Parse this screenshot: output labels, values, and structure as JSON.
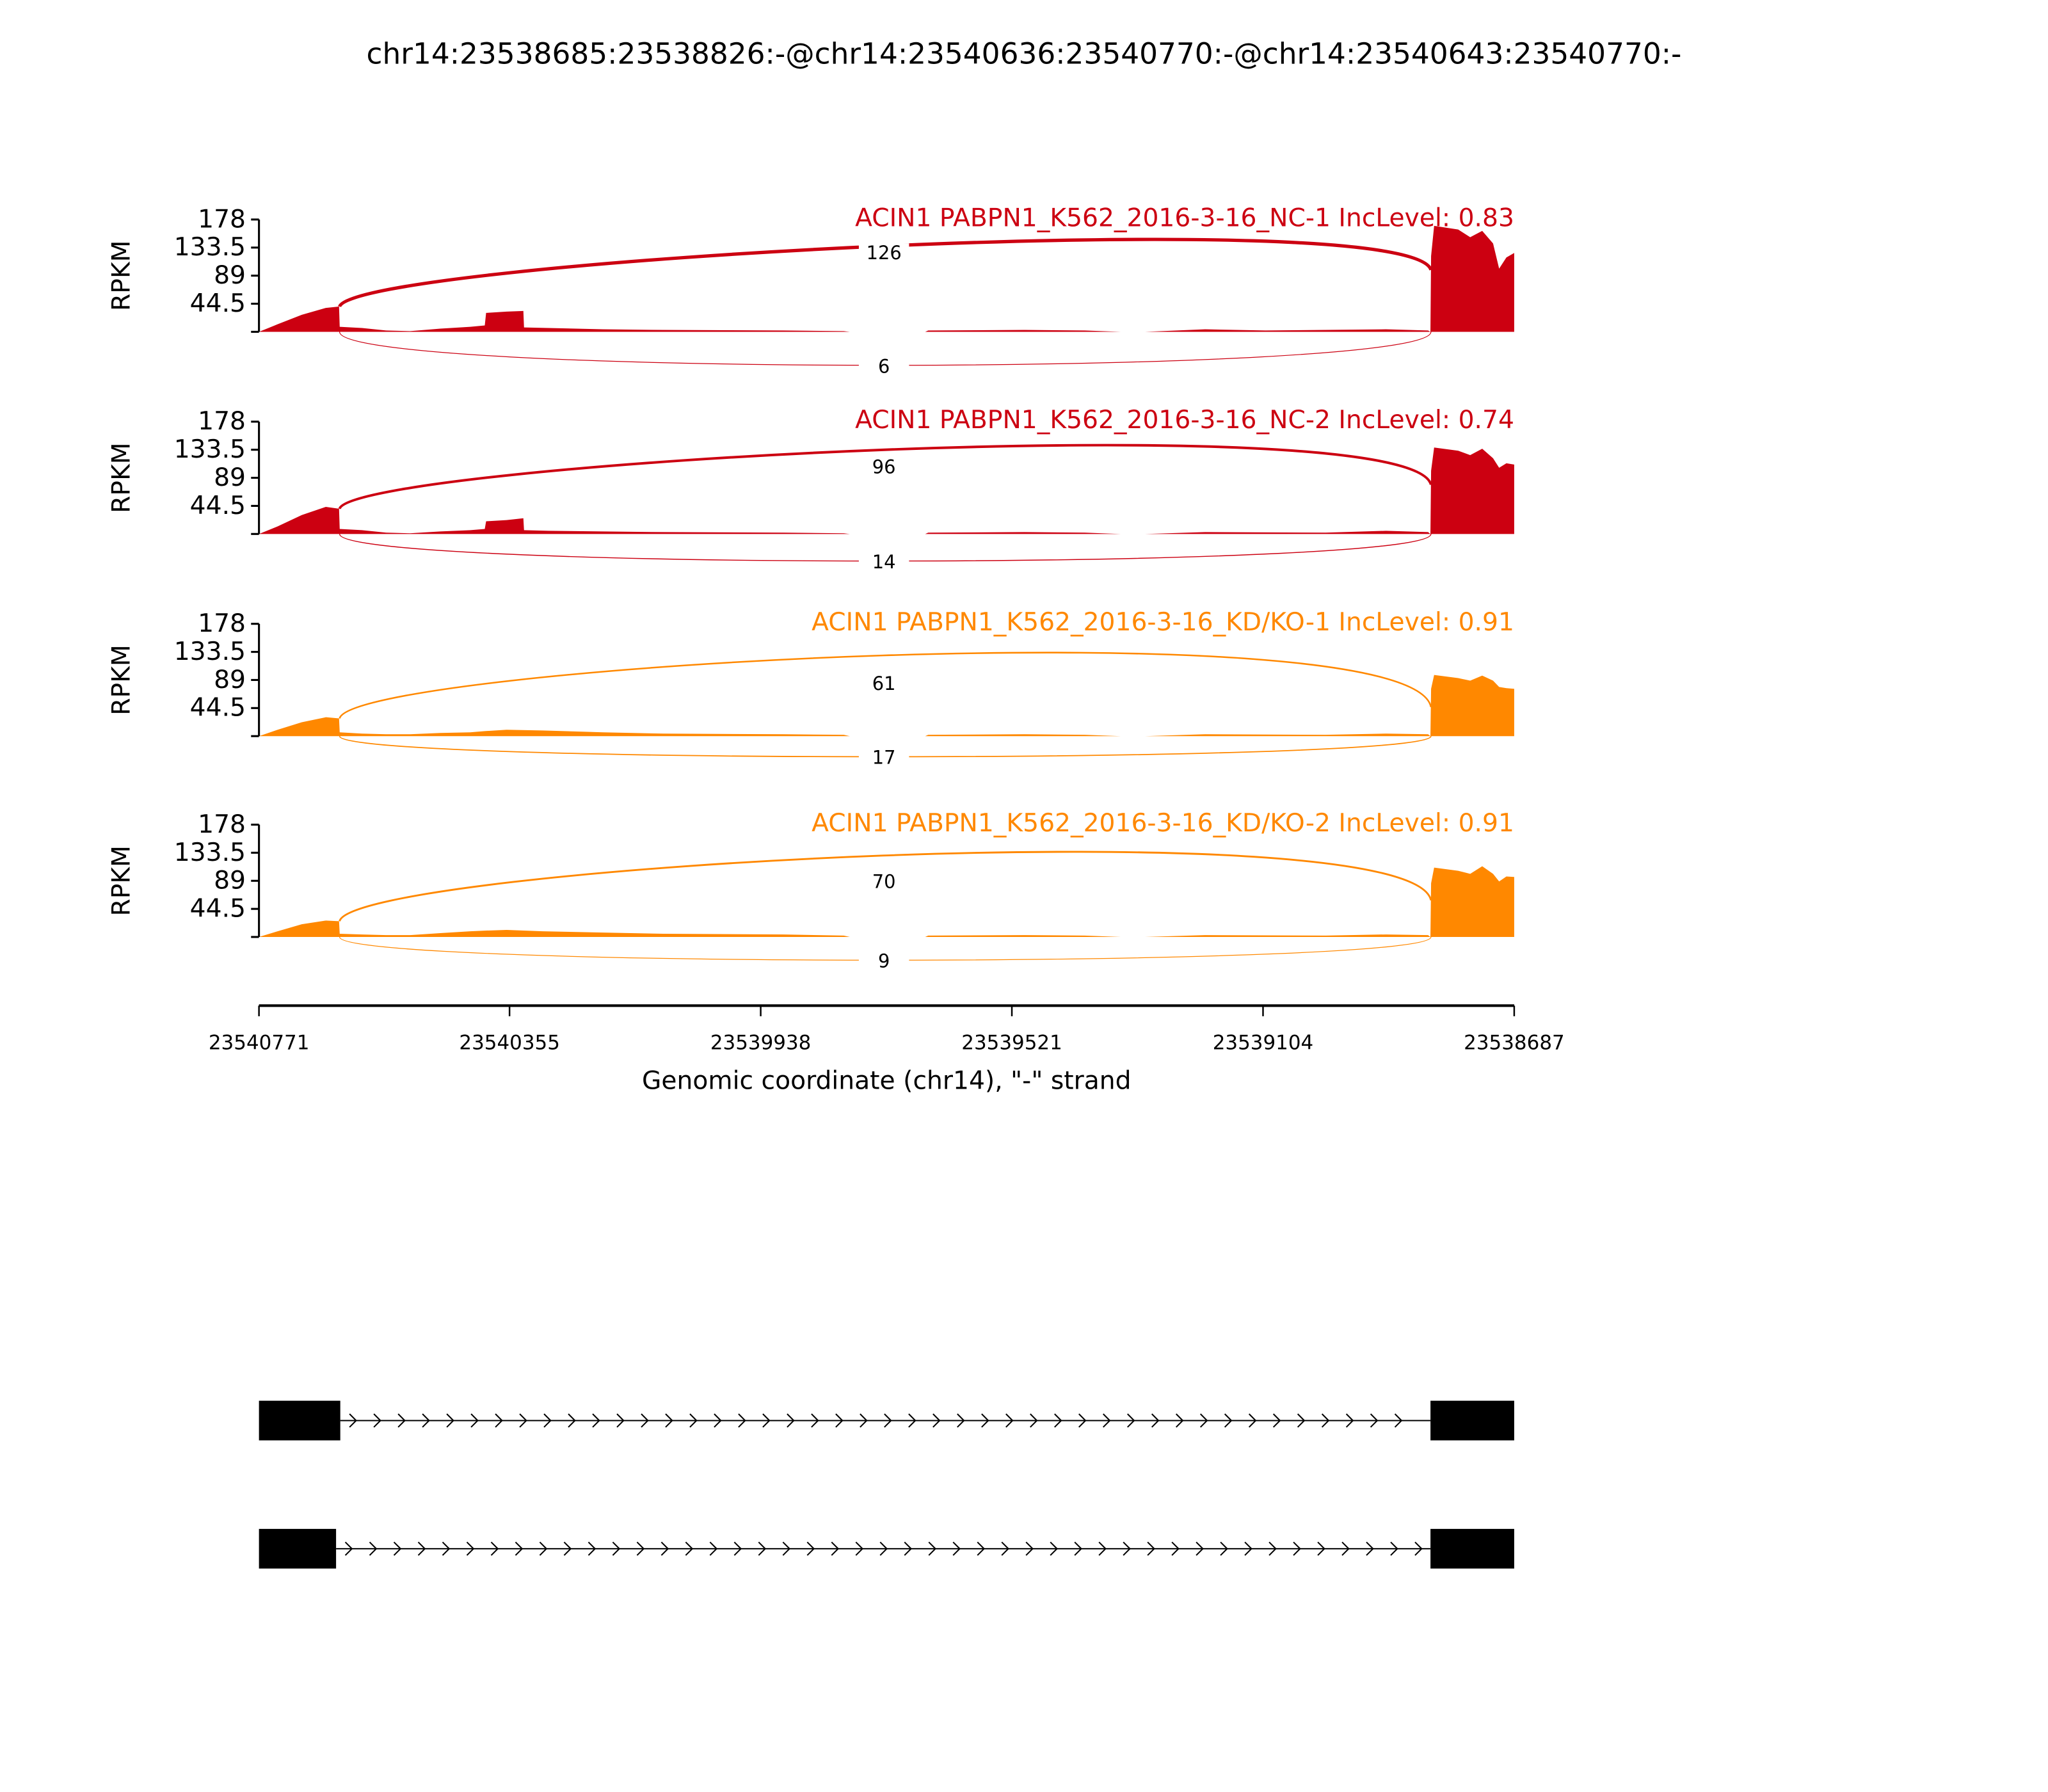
{
  "title": "chr14:23538685:23538826:-@chr14:23540636:23540770:-@chr14:23540643:23540770:-",
  "chart_data": {
    "type": "area",
    "subtype": "sashimi",
    "xlabel": "Genomic coordinate (chr14), \"-\" strand",
    "xlim": [
      23540771,
      23538687
    ],
    "xticks": [
      "23540771",
      "23540355",
      "23539938",
      "23539521",
      "23539104",
      "23538687"
    ],
    "ylabel": "RPKM",
    "ylim": [
      0,
      178
    ],
    "yticks": [
      "178",
      "133.5",
      "89",
      "44.5"
    ],
    "grid": false,
    "samples": [
      {
        "label": "ACIN1 PABPN1_K562_2016-3-16_NC-1 IncLevel: 0.83",
        "color": "#cc0011",
        "junctions": {
          "inclusion": "126",
          "skipping": "6"
        },
        "coverage": [
          [
            23540771,
            0
          ],
          [
            23540740,
            12
          ],
          [
            23540700,
            27
          ],
          [
            23540660,
            38
          ],
          [
            23540638,
            40
          ],
          [
            23540637,
            8
          ],
          [
            23540600,
            6
          ],
          [
            23540560,
            2
          ],
          [
            23540520,
            1
          ],
          [
            23540470,
            5
          ],
          [
            23540420,
            8
          ],
          [
            23540396,
            10
          ],
          [
            23540394,
            30
          ],
          [
            23540360,
            32
          ],
          [
            23540332,
            33
          ],
          [
            23540331,
            7
          ],
          [
            23540290,
            6
          ],
          [
            23540200,
            4
          ],
          [
            23540100,
            3
          ],
          [
            23539900,
            2
          ],
          [
            23539800,
            1
          ],
          [
            23539790,
            0
          ],
          [
            23539665,
            0
          ],
          [
            23539660,
            2
          ],
          [
            23539500,
            3
          ],
          [
            23539400,
            2
          ],
          [
            23539340,
            0
          ],
          [
            23539300,
            0
          ],
          [
            23539200,
            4
          ],
          [
            23539100,
            2
          ],
          [
            23538900,
            4
          ],
          [
            23538830,
            2
          ],
          [
            23538826,
            0
          ],
          [
            23538825,
            120
          ],
          [
            23538820,
            168
          ],
          [
            23538780,
            162
          ],
          [
            23538760,
            150
          ],
          [
            23538740,
            160
          ],
          [
            23538722,
            140
          ],
          [
            23538712,
            100
          ],
          [
            23538700,
            118
          ],
          [
            23538687,
            125
          ]
        ]
      },
      {
        "label": "ACIN1 PABPN1_K562_2016-3-16_NC-2 IncLevel: 0.74",
        "color": "#cc0011",
        "junctions": {
          "inclusion": "96",
          "skipping": "14"
        },
        "coverage": [
          [
            23540771,
            0
          ],
          [
            23540740,
            12
          ],
          [
            23540700,
            30
          ],
          [
            23540660,
            43
          ],
          [
            23540638,
            40
          ],
          [
            23540637,
            8
          ],
          [
            23540600,
            6
          ],
          [
            23540560,
            2
          ],
          [
            23540520,
            1
          ],
          [
            23540470,
            4
          ],
          [
            23540420,
            6
          ],
          [
            23540396,
            8
          ],
          [
            23540394,
            20
          ],
          [
            23540360,
            22
          ],
          [
            23540332,
            25
          ],
          [
            23540331,
            6
          ],
          [
            23540290,
            5
          ],
          [
            23540200,
            4
          ],
          [
            23540100,
            3
          ],
          [
            23539900,
            2
          ],
          [
            23539800,
            1
          ],
          [
            23539790,
            0
          ],
          [
            23539665,
            0
          ],
          [
            23539660,
            2
          ],
          [
            23539500,
            3
          ],
          [
            23539400,
            2
          ],
          [
            23539340,
            0
          ],
          [
            23539300,
            0
          ],
          [
            23539200,
            3
          ],
          [
            23539000,
            2
          ],
          [
            23538900,
            5
          ],
          [
            23538830,
            3
          ],
          [
            23538826,
            0
          ],
          [
            23538825,
            100
          ],
          [
            23538820,
            137
          ],
          [
            23538780,
            132
          ],
          [
            23538760,
            125
          ],
          [
            23538740,
            135
          ],
          [
            23538722,
            120
          ],
          [
            23538712,
            105
          ],
          [
            23538700,
            112
          ],
          [
            23538687,
            110
          ]
        ]
      },
      {
        "label": "ACIN1 PABPN1_K562_2016-3-16_KD/KO-1 IncLevel: 0.91",
        "color": "#ff8800",
        "junctions": {
          "inclusion": "61",
          "skipping": "17"
        },
        "coverage": [
          [
            23540771,
            0
          ],
          [
            23540740,
            10
          ],
          [
            23540700,
            22
          ],
          [
            23540660,
            30
          ],
          [
            23540638,
            28
          ],
          [
            23540637,
            6
          ],
          [
            23540600,
            4
          ],
          [
            23540560,
            3
          ],
          [
            23540520,
            3
          ],
          [
            23540470,
            5
          ],
          [
            23540420,
            6
          ],
          [
            23540396,
            8
          ],
          [
            23540360,
            10
          ],
          [
            23540300,
            9
          ],
          [
            23540200,
            6
          ],
          [
            23540100,
            4
          ],
          [
            23539900,
            3
          ],
          [
            23539800,
            2
          ],
          [
            23539790,
            0
          ],
          [
            23539665,
            0
          ],
          [
            23539660,
            2
          ],
          [
            23539500,
            3
          ],
          [
            23539400,
            2
          ],
          [
            23539340,
            0
          ],
          [
            23539300,
            0
          ],
          [
            23539200,
            3
          ],
          [
            23539000,
            2
          ],
          [
            23538900,
            4
          ],
          [
            23538830,
            3
          ],
          [
            23538826,
            0
          ],
          [
            23538825,
            75
          ],
          [
            23538820,
            97
          ],
          [
            23538780,
            92
          ],
          [
            23538760,
            88
          ],
          [
            23538740,
            96
          ],
          [
            23538722,
            88
          ],
          [
            23538712,
            78
          ],
          [
            23538700,
            76
          ],
          [
            23538687,
            75
          ]
        ]
      },
      {
        "label": "ACIN1 PABPN1_K562_2016-3-16_KD/KO-2 IncLevel: 0.91",
        "color": "#ff8800",
        "junctions": {
          "inclusion": "70",
          "skipping": "9"
        },
        "coverage": [
          [
            23540771,
            0
          ],
          [
            23540740,
            9
          ],
          [
            23540700,
            20
          ],
          [
            23540660,
            26
          ],
          [
            23540638,
            25
          ],
          [
            23540637,
            5
          ],
          [
            23540600,
            4
          ],
          [
            23540560,
            3
          ],
          [
            23540520,
            3
          ],
          [
            23540470,
            6
          ],
          [
            23540420,
            9
          ],
          [
            23540396,
            10
          ],
          [
            23540360,
            11
          ],
          [
            23540300,
            9
          ],
          [
            23540200,
            7
          ],
          [
            23540100,
            5
          ],
          [
            23539900,
            4
          ],
          [
            23539800,
            2
          ],
          [
            23539790,
            0
          ],
          [
            23539665,
            0
          ],
          [
            23539660,
            2
          ],
          [
            23539500,
            3
          ],
          [
            23539400,
            2
          ],
          [
            23539340,
            0
          ],
          [
            23539300,
            0
          ],
          [
            23539200,
            3
          ],
          [
            23539000,
            2
          ],
          [
            23538900,
            4
          ],
          [
            23538830,
            3
          ],
          [
            23538826,
            0
          ],
          [
            23538825,
            85
          ],
          [
            23538820,
            110
          ],
          [
            23538780,
            105
          ],
          [
            23538760,
            100
          ],
          [
            23538740,
            112
          ],
          [
            23538722,
            100
          ],
          [
            23538712,
            88
          ],
          [
            23538700,
            96
          ],
          [
            23538687,
            95
          ]
        ]
      }
    ],
    "gene_models": [
      {
        "exons": [
          [
            23540771,
            23540636
          ],
          [
            23538826,
            23538687
          ]
        ]
      },
      {
        "exons": [
          [
            23540771,
            23540643
          ],
          [
            23538826,
            23538687
          ]
        ]
      }
    ]
  }
}
